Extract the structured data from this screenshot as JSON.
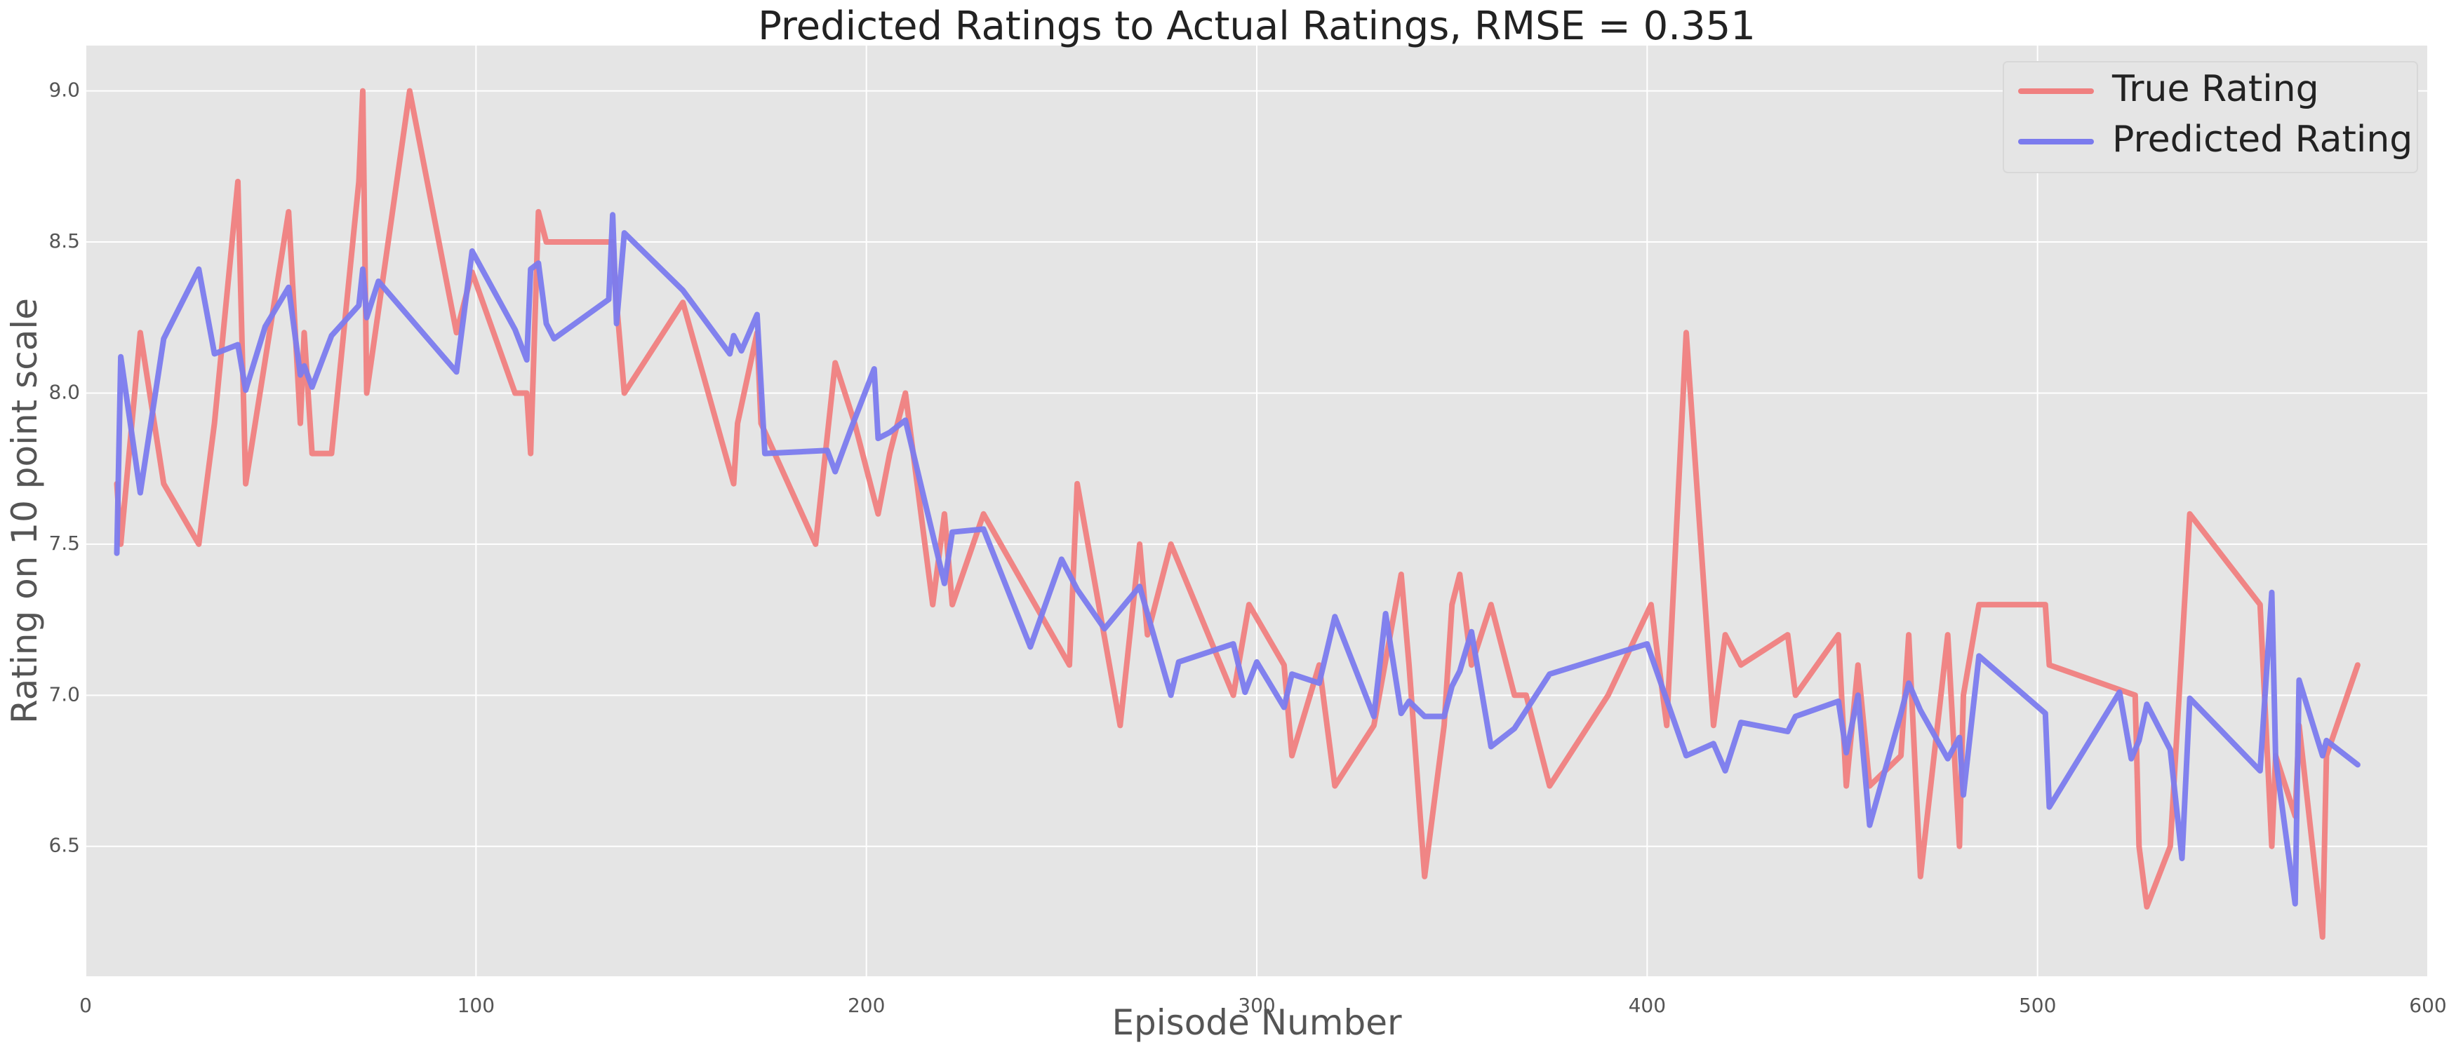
{
  "chart_data": {
    "type": "line",
    "title": "Predicted Ratings to Actual Ratings, RMSE = 0.351",
    "xlabel": "Episode Number",
    "ylabel": "Rating on 10 point scale",
    "xlim": [
      0,
      600
    ],
    "ylim": [
      6.07,
      9.15
    ],
    "x_ticks": [
      0,
      100,
      200,
      300,
      400,
      500,
      600
    ],
    "x_tick_labels": [
      "0",
      "100",
      "200",
      "300",
      "400",
      "500",
      "600"
    ],
    "y_ticks": [
      6.5,
      7.0,
      7.5,
      8.0,
      8.5,
      9.0
    ],
    "y_tick_labels": [
      "6.5",
      "7.0",
      "7.5",
      "8.0",
      "8.5",
      "9.0"
    ],
    "grid": true,
    "legend": "top-right",
    "series": [
      {
        "name": "True Rating",
        "color": "#f08080",
        "x": [
          8,
          9,
          14,
          20,
          29,
          33,
          39,
          41,
          52,
          55,
          56,
          58,
          63,
          70,
          71,
          72,
          83,
          95,
          99,
          110,
          113,
          114,
          116,
          118,
          135,
          136,
          138,
          153,
          166,
          167,
          172,
          173,
          187,
          192,
          197,
          203,
          206,
          210,
          217,
          220,
          222,
          230,
          252,
          254,
          265,
          270,
          272,
          278,
          294,
          298,
          307,
          309,
          316,
          320,
          330,
          337,
          339,
          343,
          348,
          350,
          352,
          355,
          360,
          366,
          369,
          375,
          390,
          401,
          405,
          410,
          417,
          420,
          424,
          436,
          438,
          449,
          451,
          454,
          457,
          465,
          467,
          470,
          477,
          480,
          481,
          485,
          502,
          503,
          525,
          526,
          528,
          534,
          539,
          557,
          560,
          561,
          566,
          567,
          573,
          574,
          582
        ],
        "y": [
          7.7,
          7.5,
          8.2,
          7.7,
          7.5,
          7.9,
          8.7,
          7.7,
          8.6,
          7.9,
          8.2,
          7.8,
          7.8,
          8.7,
          9.0,
          8.0,
          9.0,
          8.2,
          8.4,
          8.0,
          8.0,
          7.8,
          8.6,
          8.5,
          8.5,
          8.3,
          8.0,
          8.3,
          7.7,
          7.9,
          8.2,
          7.9,
          7.5,
          8.1,
          7.9,
          7.6,
          7.8,
          8.0,
          7.3,
          7.6,
          7.3,
          7.6,
          7.1,
          7.7,
          6.9,
          7.5,
          7.2,
          7.5,
          7.0,
          7.3,
          7.1,
          6.8,
          7.1,
          6.7,
          6.9,
          7.4,
          7.1,
          6.4,
          6.9,
          7.3,
          7.4,
          7.1,
          7.3,
          7.0,
          7.0,
          6.7,
          7.0,
          7.3,
          6.9,
          8.2,
          6.9,
          7.2,
          7.1,
          7.2,
          7.0,
          7.2,
          6.7,
          7.1,
          6.7,
          6.8,
          7.2,
          6.4,
          7.2,
          6.5,
          7.0,
          7.3,
          7.3,
          7.1,
          7.0,
          6.5,
          6.3,
          6.5,
          7.6,
          7.3,
          6.5,
          6.8,
          6.6,
          6.9,
          6.2,
          6.8,
          7.1
        ]
      },
      {
        "name": "Predicted Rating",
        "color": "#7b7bee",
        "x": [
          8,
          9,
          14,
          20,
          29,
          33,
          39,
          41,
          46,
          52,
          55,
          56,
          58,
          63,
          70,
          71,
          72,
          75,
          95,
          99,
          110,
          113,
          114,
          116,
          118,
          120,
          134,
          135,
          136,
          138,
          153,
          165,
          166,
          168,
          172,
          174,
          190,
          192,
          196,
          202,
          203,
          206,
          210,
          220,
          222,
          230,
          242,
          250,
          254,
          261,
          270,
          278,
          280,
          294,
          297,
          300,
          307,
          309,
          316,
          320,
          330,
          333,
          337,
          339,
          343,
          348,
          350,
          352,
          355,
          360,
          366,
          375,
          400,
          410,
          417,
          420,
          424,
          436,
          438,
          449,
          451,
          454,
          457,
          465,
          467,
          470,
          477,
          480,
          481,
          485,
          502,
          503,
          521,
          524,
          526,
          528,
          534,
          537,
          539,
          557,
          560,
          561,
          566,
          567,
          573,
          574,
          582
        ],
        "y": [
          7.47,
          8.12,
          7.67,
          8.18,
          8.41,
          8.13,
          8.16,
          8.01,
          8.22,
          8.35,
          8.06,
          8.09,
          8.02,
          8.19,
          8.29,
          8.41,
          8.25,
          8.37,
          8.07,
          8.47,
          8.21,
          8.11,
          8.41,
          8.43,
          8.23,
          8.18,
          8.31,
          8.59,
          8.23,
          8.53,
          8.34,
          8.13,
          8.19,
          8.14,
          8.26,
          7.8,
          7.81,
          7.74,
          7.88,
          8.08,
          7.85,
          7.87,
          7.91,
          7.37,
          7.54,
          7.55,
          7.16,
          7.45,
          7.35,
          7.22,
          7.36,
          7.0,
          7.11,
          7.17,
          7.01,
          7.11,
          6.96,
          7.07,
          7.04,
          7.26,
          6.93,
          7.27,
          6.94,
          6.98,
          6.93,
          6.93,
          7.03,
          7.08,
          7.21,
          6.83,
          6.89,
          7.07,
          7.17,
          6.8,
          6.84,
          6.75,
          6.91,
          6.88,
          6.93,
          6.98,
          6.81,
          7.0,
          6.57,
          6.94,
          7.04,
          6.95,
          6.79,
          6.86,
          6.67,
          7.13,
          6.94,
          6.63,
          7.01,
          6.79,
          6.85,
          6.97,
          6.82,
          6.46,
          6.99,
          6.75,
          7.34,
          6.79,
          6.31,
          7.05,
          6.8,
          6.85,
          6.77
        ]
      }
    ]
  }
}
